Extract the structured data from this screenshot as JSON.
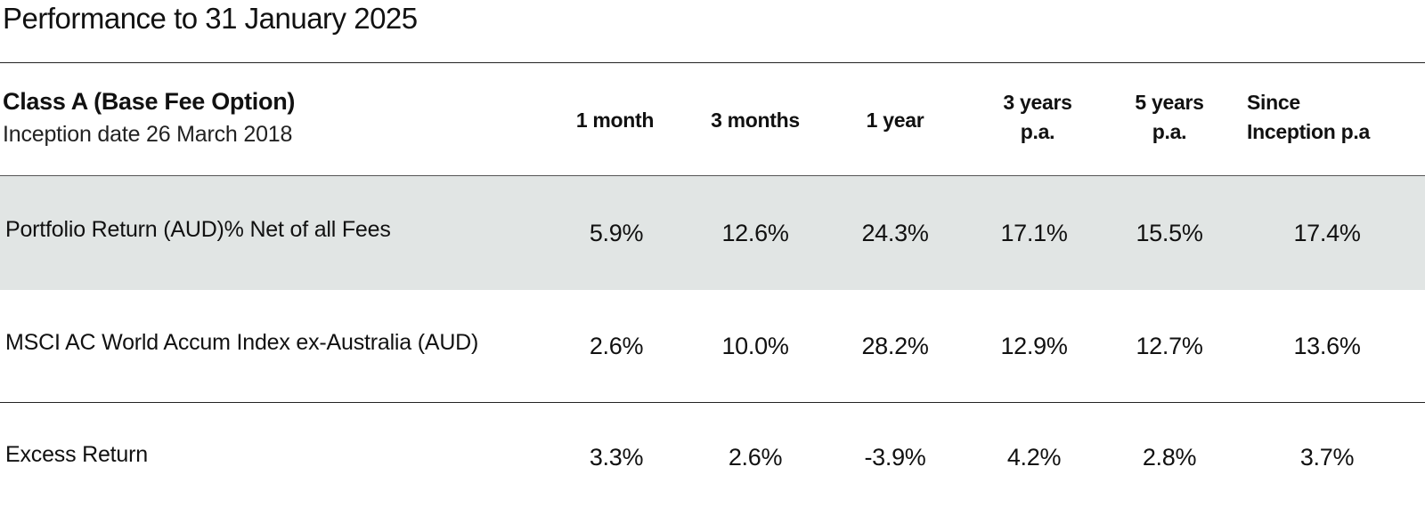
{
  "title": "Performance to 31 January 2025",
  "class": {
    "name": "Class A (Base Fee Option)",
    "inception": "Inception date 26 March 2018"
  },
  "columns": [
    {
      "line1": "1 month",
      "line2": ""
    },
    {
      "line1": "3 months",
      "line2": ""
    },
    {
      "line1": "1 year",
      "line2": ""
    },
    {
      "line1": "3 years",
      "line2": "p.a."
    },
    {
      "line1": "5 years",
      "line2": "p.a."
    },
    {
      "line1": "Since",
      "line2": "Inception p.a"
    }
  ],
  "rows": [
    {
      "label": "Portfolio Return (AUD)% Net of all Fees",
      "values": [
        "5.9%",
        "12.6%",
        "24.3%",
        "17.1%",
        "15.5%",
        "17.4%"
      ]
    },
    {
      "label": "MSCI AC World Accum Index ex-Australia (AUD)",
      "values": [
        "2.6%",
        "10.0%",
        "28.2%",
        "12.9%",
        "12.7%",
        "13.6%"
      ]
    },
    {
      "label": "Excess Return",
      "values": [
        "3.3%",
        "2.6%",
        "-3.9%",
        "4.2%",
        "2.8%",
        "3.7%"
      ]
    }
  ],
  "colors": {
    "shaded_row": "#e1e5e4",
    "text": "#111111",
    "rule": "#222222"
  }
}
